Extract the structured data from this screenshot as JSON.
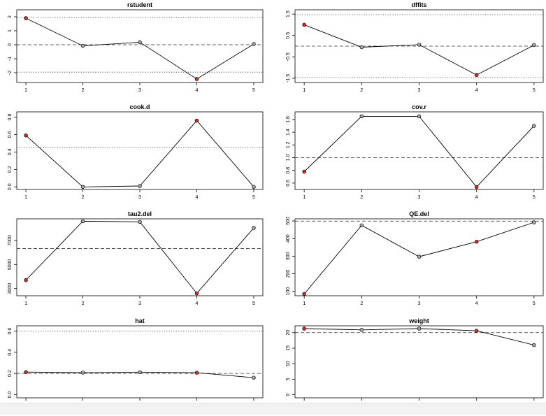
{
  "colors": {
    "highlight": "#c0392b",
    "normal": "#a6a6a6",
    "line": "#000000"
  },
  "chart_data": [
    {
      "type": "line",
      "title": "rstudent",
      "x": [
        1,
        2,
        3,
        4,
        5
      ],
      "values": [
        1.9,
        -0.08,
        0.18,
        -2.45,
        0.05
      ],
      "highlight": [
        1,
        4
      ],
      "ylim": [
        -2.7,
        2.5
      ],
      "yticks": [
        -2,
        -1,
        0,
        1,
        2
      ],
      "yticklabels": [
        "-2",
        "-1",
        "0",
        "1",
        "2"
      ],
      "refs": [
        {
          "y": 1.96,
          "style": "dotted"
        },
        {
          "y": 0,
          "style": "dashed"
        },
        {
          "y": -1.96,
          "style": "dotted"
        }
      ]
    },
    {
      "type": "line",
      "title": "dffits",
      "x": [
        1,
        2,
        3,
        4,
        5
      ],
      "values": [
        1.0,
        -0.05,
        0.07,
        -1.35,
        0.05
      ],
      "highlight": [
        1,
        4
      ],
      "ylim": [
        -1.7,
        1.7
      ],
      "yticks": [
        -1.5,
        -0.5,
        0.5,
        1.5
      ],
      "yticklabels": [
        "-1.5",
        "-0.5",
        "0.5",
        "1.5"
      ],
      "refs": [
        {
          "y": 1.47,
          "style": "dotted"
        },
        {
          "y": 0,
          "style": "dashed"
        },
        {
          "y": -1.47,
          "style": "dotted"
        }
      ]
    },
    {
      "type": "line",
      "title": "cook.d",
      "x": [
        1,
        2,
        3,
        4,
        5
      ],
      "values": [
        0.59,
        0.0,
        0.01,
        0.76,
        0.0
      ],
      "highlight": [
        1,
        4
      ],
      "ylim": [
        -0.03,
        0.86
      ],
      "yticks": [
        0,
        0.2,
        0.4,
        0.6,
        0.8
      ],
      "yticklabels": [
        "0.0",
        "0.2",
        "0.4",
        "0.6",
        "0.8"
      ],
      "refs": [
        {
          "y": 0.455,
          "style": "dotted"
        }
      ]
    },
    {
      "type": "line",
      "title": "cov.r",
      "x": [
        1,
        2,
        3,
        4,
        5
      ],
      "values": [
        0.78,
        1.65,
        1.65,
        0.54,
        1.5
      ],
      "highlight": [
        1,
        4
      ],
      "ylim": [
        0.5,
        1.72
      ],
      "yticks": [
        0.6,
        0.8,
        1.0,
        1.2,
        1.4,
        1.6
      ],
      "yticklabels": [
        "0.6",
        "0.8",
        "1.0",
        "1.2",
        "1.4",
        "1.6"
      ],
      "refs": [
        {
          "y": 1.0,
          "style": "dashed"
        }
      ]
    },
    {
      "type": "line",
      "title": "tau2.del",
      "x": [
        1,
        2,
        3,
        4,
        5
      ],
      "values": [
        3700,
        8600,
        8550,
        2600,
        8050
      ],
      "highlight": [
        1,
        4
      ],
      "ylim": [
        2400,
        8800
      ],
      "yticks": [
        3000,
        5000,
        7000
      ],
      "yticklabels": [
        "3000",
        "5000",
        "7000"
      ],
      "refs": [
        {
          "y": 6330,
          "style": "dashed"
        }
      ]
    },
    {
      "type": "line",
      "title": "QE.del",
      "x": [
        1,
        2,
        3,
        4,
        5
      ],
      "values": [
        85,
        475,
        297,
        382,
        492
      ],
      "highlight": [
        1,
        4
      ],
      "ylim": [
        75,
        512
      ],
      "yticks": [
        100,
        200,
        300,
        400,
        500
      ],
      "yticklabels": [
        "100",
        "200",
        "300",
        "400",
        "500"
      ],
      "refs": [
        {
          "y": 499,
          "style": "dashed"
        }
      ]
    },
    {
      "type": "line",
      "title": "hat",
      "x": [
        1,
        2,
        3,
        4,
        5
      ],
      "values": [
        0.213,
        0.208,
        0.212,
        0.207,
        0.16
      ],
      "highlight": [
        1,
        4
      ],
      "ylim": [
        -0.03,
        0.65
      ],
      "yticks": [
        0,
        0.2,
        0.4,
        0.6
      ],
      "yticklabels": [
        "0.0",
        "0.2",
        "0.4",
        "0.6"
      ],
      "refs": [
        {
          "y": 0.6,
          "style": "dotted"
        },
        {
          "y": 0.2,
          "style": "dashed"
        }
      ]
    },
    {
      "type": "line",
      "title": "weight",
      "x": [
        1,
        2,
        3,
        4,
        5
      ],
      "values": [
        21.3,
        20.9,
        21.3,
        20.6,
        16.0
      ],
      "highlight": [
        1,
        4
      ],
      "ylim": [
        -1,
        22.2
      ],
      "yticks": [
        0,
        5,
        10,
        15,
        20
      ],
      "yticklabels": [
        "0",
        "5",
        "10",
        "15",
        "20"
      ],
      "refs": [
        {
          "y": 20,
          "style": "dashed"
        }
      ]
    }
  ]
}
